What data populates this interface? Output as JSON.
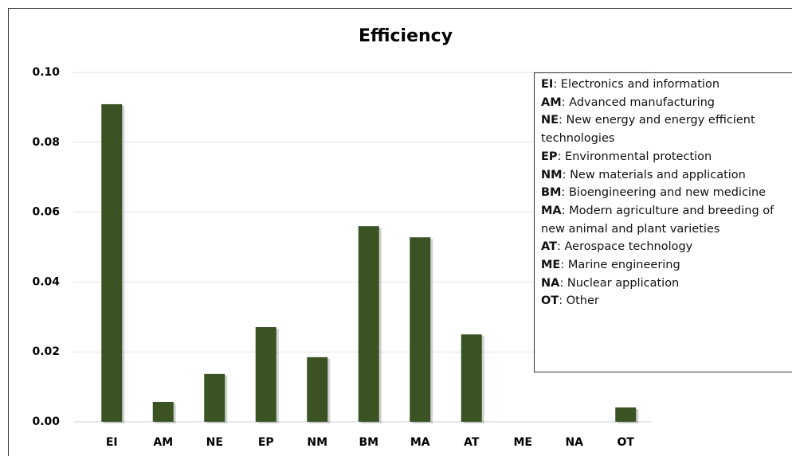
{
  "chart_data": {
    "type": "bar",
    "title": "Efficiency",
    "categories": [
      "EI",
      "AM",
      "NE",
      "EP",
      "NM",
      "BM",
      "MA",
      "AT",
      "ME",
      "NA",
      "OT"
    ],
    "values": [
      0.0909,
      0.0057,
      0.0137,
      0.0271,
      0.0185,
      0.056,
      0.0528,
      0.025,
      0,
      0,
      0.0041
    ],
    "color": "#3b5323",
    "ylim": [
      0,
      0.1
    ],
    "yticks": [
      {
        "value": 0,
        "label": "0.00"
      },
      0.02,
      0.04,
      0.06,
      0.08,
      {
        "value": 0.1,
        "label": "0.10"
      }
    ],
    "grid": true,
    "legend": [
      {
        "key": "EI",
        "text": ": Electronics and information"
      },
      {
        "key": "AM",
        "text": ": Advanced manufacturing"
      },
      {
        "key": "NE",
        "text": ": New energy and energy efficient technologies"
      },
      {
        "key": "EP",
        "text": ": Environmental protection"
      },
      {
        "key": "NM",
        "text": ": New materials and application"
      },
      {
        "key": "BM",
        "text": ": Bioengineering and new medicine"
      },
      {
        "key": "MA",
        "text": ": Modern agriculture and breeding of new animal and plant varieties"
      },
      {
        "key": "AT",
        "text": ": Aerospace technology"
      },
      {
        "key": "ME",
        "text": ": Marine engineering"
      },
      {
        "key": "NA",
        "text": ": Nuclear application"
      },
      {
        "key": "OT",
        "text": ": Other"
      }
    ]
  }
}
